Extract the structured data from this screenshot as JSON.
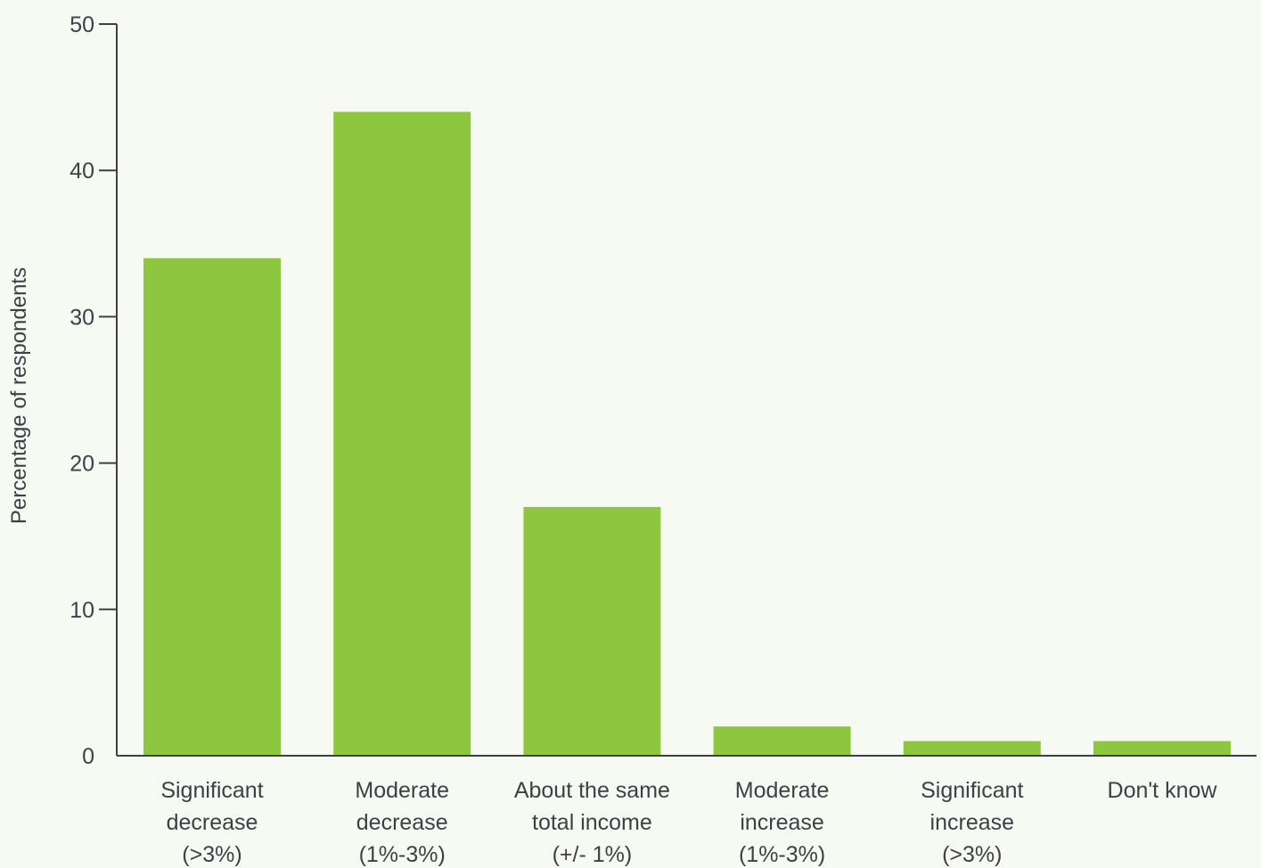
{
  "chart_data": {
    "type": "bar",
    "title": "",
    "xlabel": "",
    "ylabel": "Percentage of respondents",
    "ylim": [
      0,
      50
    ],
    "yticks": [
      0,
      10,
      20,
      30,
      40,
      50
    ],
    "grid": false,
    "legend": "none",
    "bar_color": "#8dc63f",
    "axis_color": "#3c4147",
    "background": "#f7faf2",
    "categories": [
      [
        "Significant",
        "decrease",
        "(>3%)"
      ],
      [
        "Moderate",
        "decrease",
        "(1%-3%)"
      ],
      [
        "About the same",
        "total income",
        "(+/- 1%)"
      ],
      [
        "Moderate",
        "increase",
        "(1%-3%)"
      ],
      [
        "Significant",
        "increase",
        "(>3%)"
      ],
      [
        "Don't know"
      ]
    ],
    "values": [
      34,
      44,
      17,
      2,
      1,
      1
    ]
  }
}
